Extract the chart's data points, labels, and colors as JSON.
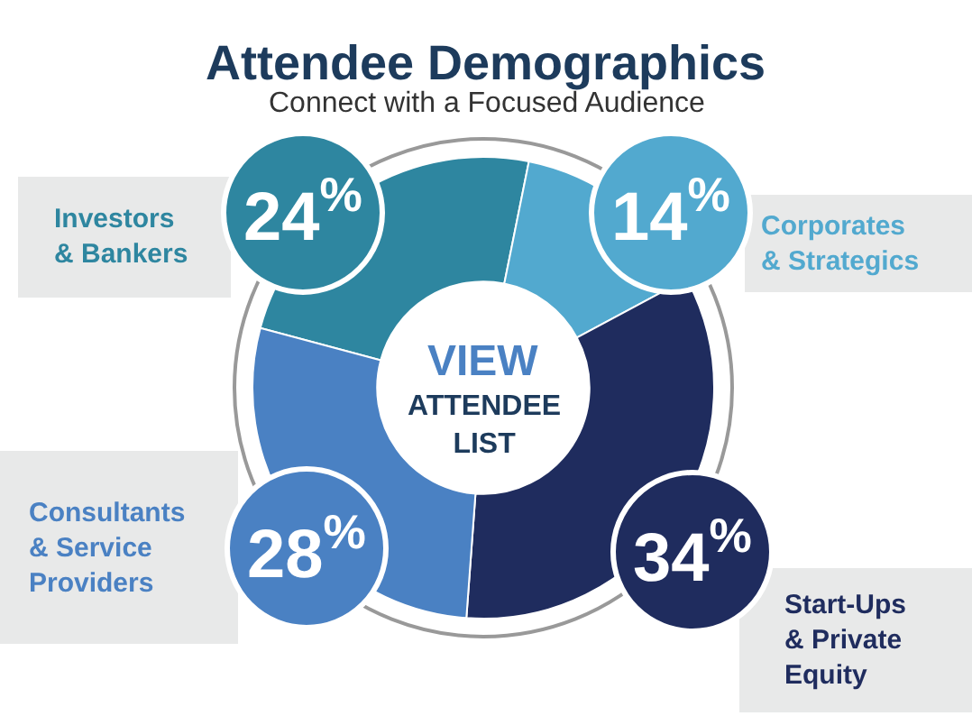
{
  "chart_data": {
    "type": "donut",
    "title": "Attendee Demographics",
    "subtitle": "Connect with a Focused Audience",
    "categories": [
      "Investors\n& Bankers",
      "Corporates\n& Strategics",
      "Start-Ups\n& Private\nEquity",
      "Consultants\n& Service\nProviders"
    ],
    "values": [
      24,
      14,
      34,
      28
    ],
    "value_labels": [
      "24$^{%}$",
      "14$^{%}$",
      "34$^{%}$",
      "28$^{%}$"
    ],
    "colors": [
      "#2e86a0",
      "#52a9cf",
      "#1f2c5e",
      "#4a81c3"
    ],
    "annotations": [
      "VIEW",
      "ATTENDEE\nLIST"
    ],
    "legend": false
  }
}
